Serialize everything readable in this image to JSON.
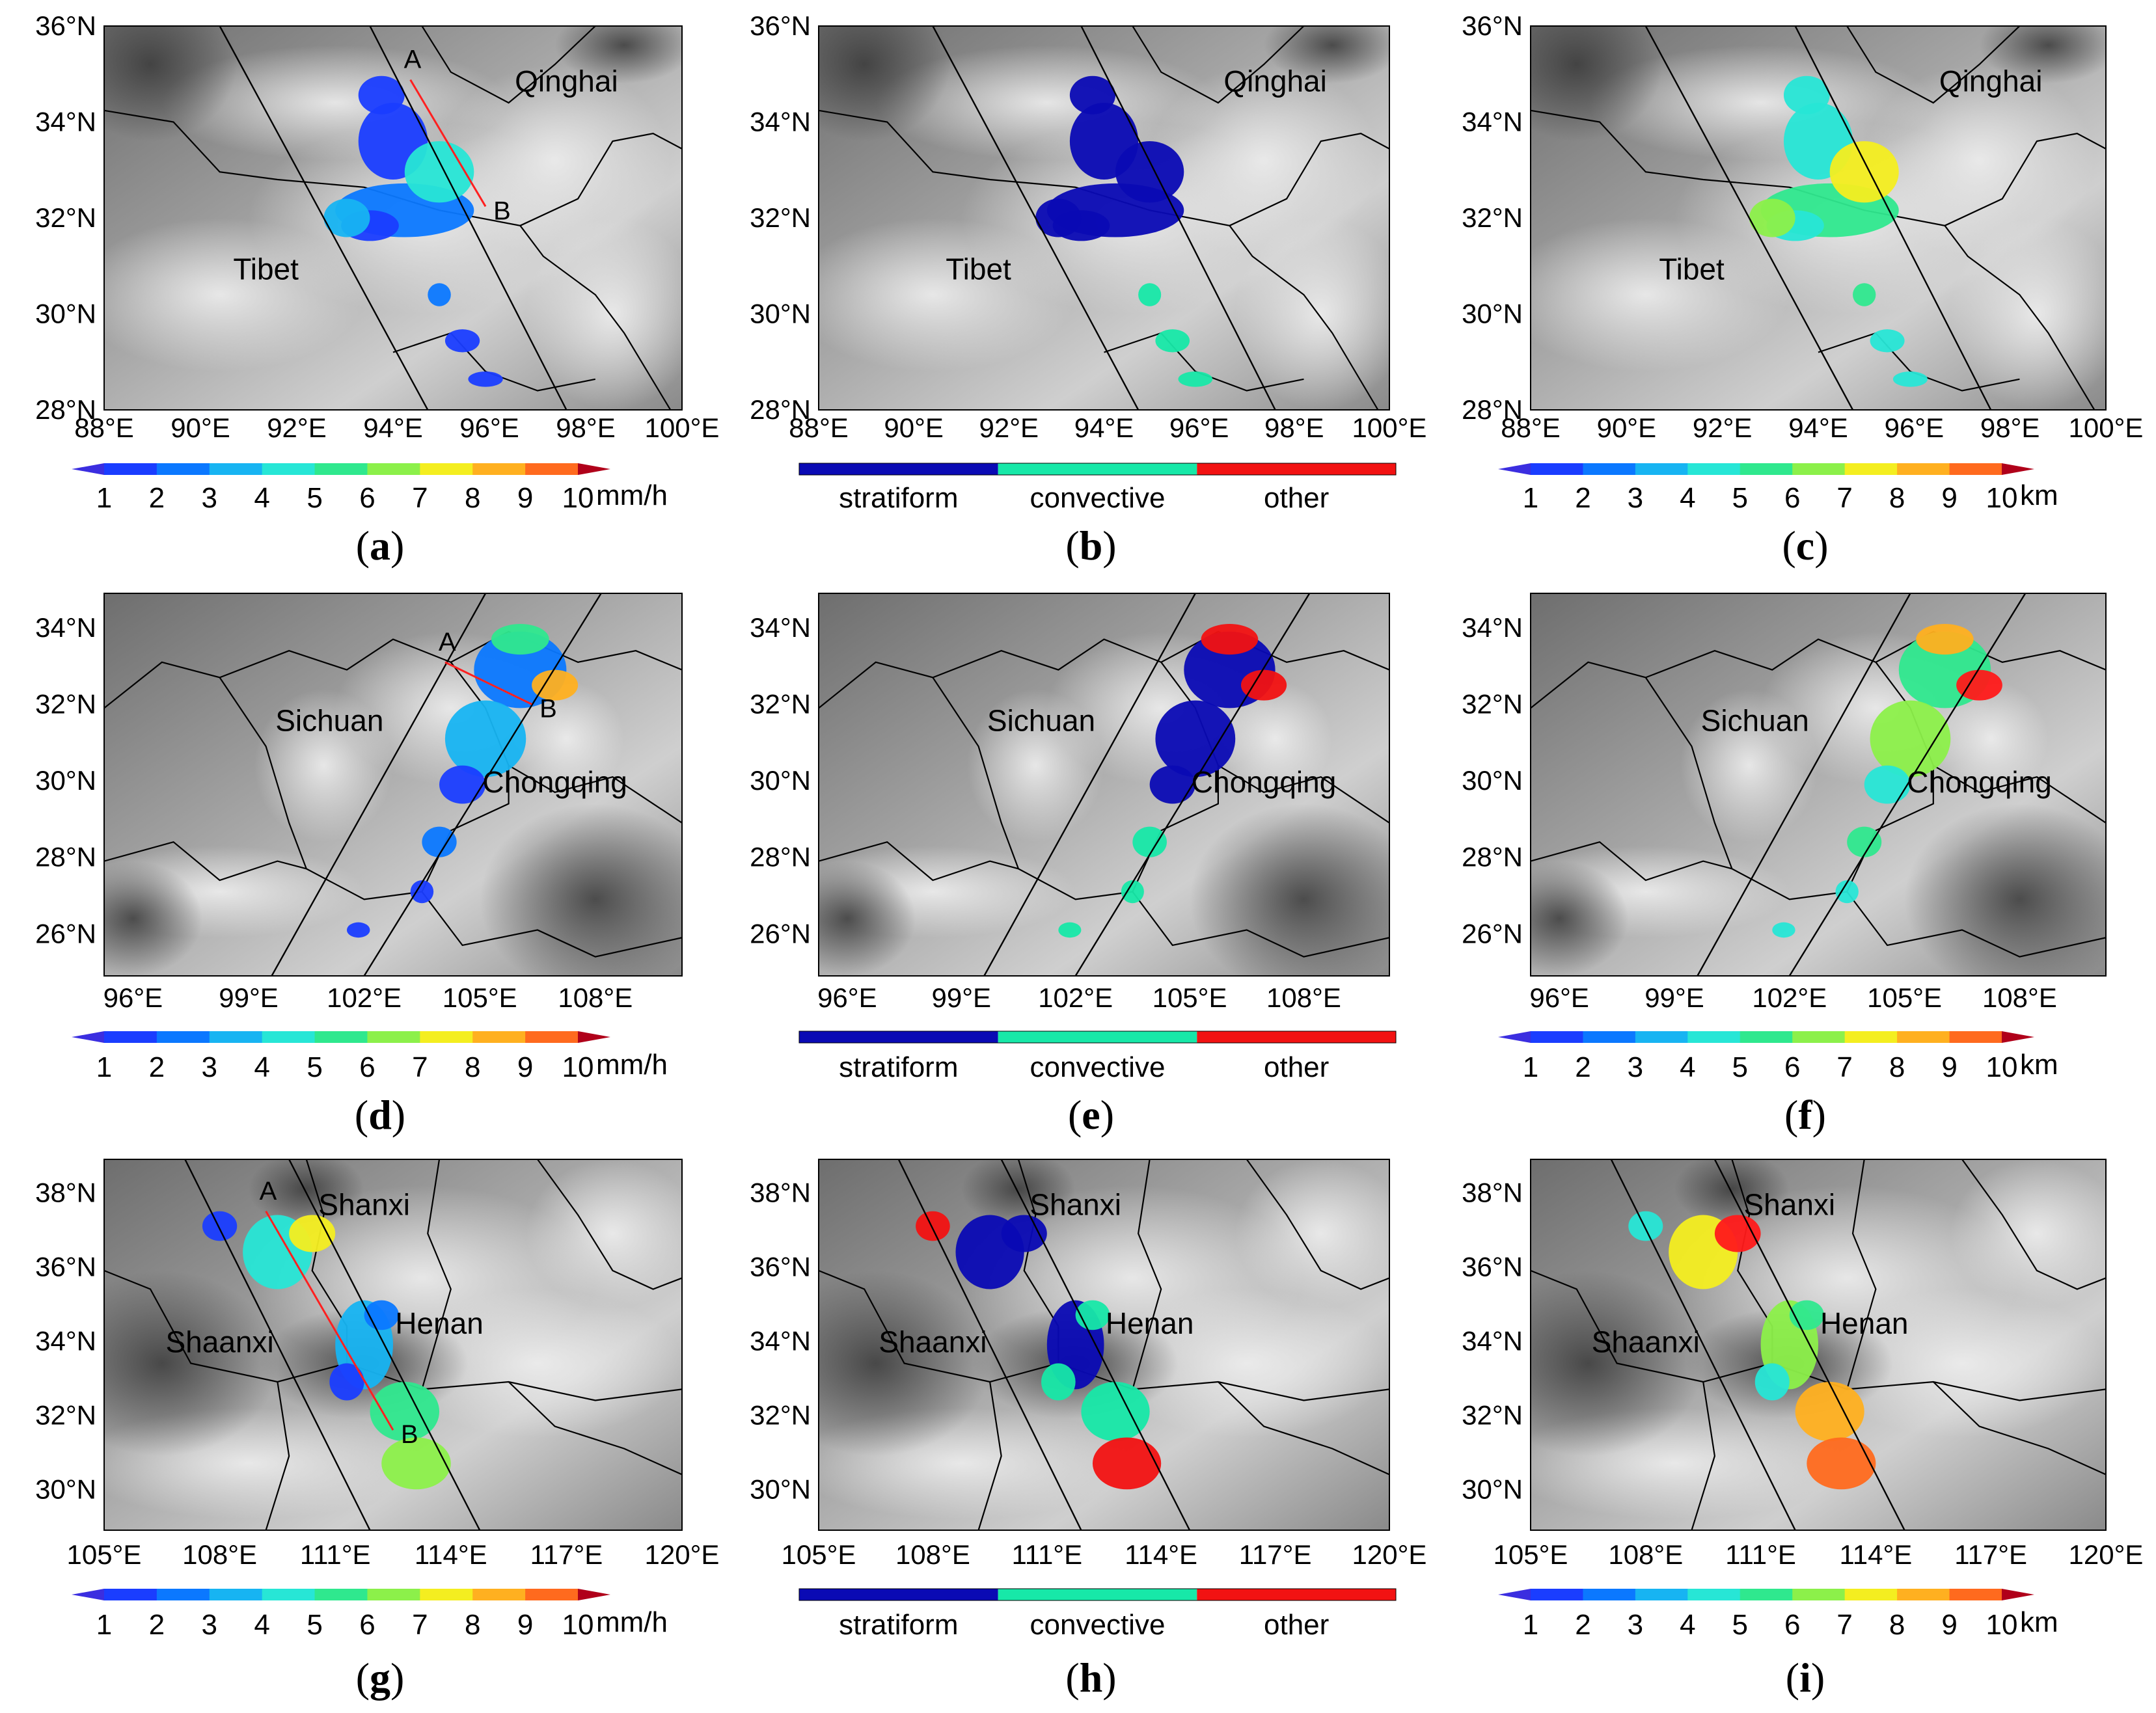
{
  "colorbars": {
    "rate": {
      "ticks": [
        "1",
        "2",
        "3",
        "4",
        "5",
        "6",
        "7",
        "8",
        "9",
        "10"
      ],
      "unit": "mm/h"
    },
    "height": {
      "ticks": [
        "1",
        "2",
        "3",
        "4",
        "5",
        "6",
        "7",
        "8",
        "9",
        "10"
      ],
      "unit": "km"
    },
    "type": {
      "labels": [
        "stratiform",
        "convective",
        "other"
      ]
    }
  },
  "colors": {
    "levels": [
      "#1a3dff",
      "#0b78ff",
      "#17b4f2",
      "#27e6d6",
      "#2fe88e",
      "#8cf04a",
      "#f4ee20",
      "#ffb020",
      "#ff6a1e",
      "#ff1a1a"
    ],
    "end_low": "#3b2ee0",
    "end_high": "#b0001a",
    "stratiform": "#0a0ab4",
    "convective": "#17e8a8",
    "other": "#f21212",
    "swath_line": "#000000",
    "cross_section_line": "#ff2020"
  },
  "rows": [
    {
      "lat_labels": [
        "36°N",
        "34°N",
        "32°N",
        "30°N",
        "28°N"
      ],
      "lon_labels": [
        "88°E",
        "90°E",
        "92°E",
        "94°E",
        "96°E",
        "98°E",
        "100°E"
      ],
      "regions": [
        "Qinghai",
        "Tibet"
      ],
      "points": [
        "A",
        "B"
      ],
      "panels": [
        {
          "caption_letter": "a"
        },
        {
          "caption_letter": "b"
        },
        {
          "caption_letter": "c"
        }
      ]
    },
    {
      "lat_labels": [
        "34°N",
        "32°N",
        "30°N",
        "28°N",
        "26°N"
      ],
      "lon_labels": [
        "96°E",
        "99°E",
        "102°E",
        "105°E",
        "108°E"
      ],
      "regions": [
        "Sichuan",
        "Chongqing"
      ],
      "points": [
        "A",
        "B"
      ],
      "panels": [
        {
          "caption_letter": "d"
        },
        {
          "caption_letter": "e"
        },
        {
          "caption_letter": "f"
        }
      ]
    },
    {
      "lat_labels": [
        "38°N",
        "36°N",
        "34°N",
        "32°N",
        "30°N"
      ],
      "lon_labels": [
        "105°E",
        "108°E",
        "111°E",
        "114°E",
        "117°E",
        "120°E"
      ],
      "regions": [
        "Shanxi",
        "Shaanxi",
        "Henan"
      ],
      "points": [
        "A",
        "B"
      ],
      "panels": [
        {
          "caption_letter": "g"
        },
        {
          "caption_letter": "h"
        },
        {
          "caption_letter": "i"
        }
      ]
    }
  ]
}
